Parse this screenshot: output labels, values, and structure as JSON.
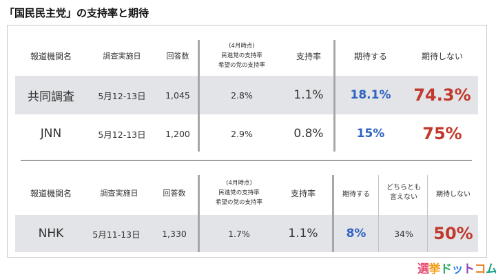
{
  "title": "「国民民主党」の支持率と期待",
  "table1": {
    "headers": {
      "agency": "報道機関名",
      "date": "調査実施日",
      "responses": "回答数",
      "note_line1": "(4月時点)",
      "note_line2": "民進党の支持率",
      "note_line3": "希望の党の支持率",
      "support": "支持率",
      "expect": "期待する",
      "no_expect": "期待しない"
    },
    "rows": [
      {
        "agency": "共同調査",
        "date": "5月12-13日",
        "responses": "1,045",
        "april": "2.8%",
        "support": "1.1%",
        "expect": "18.1%",
        "no_expect": "74.3%"
      },
      {
        "agency": "JNN",
        "date": "5月12-13日",
        "responses": "1,200",
        "april": "2.9%",
        "support": "0.8%",
        "expect": "15%",
        "no_expect": "75%"
      }
    ]
  },
  "table2": {
    "headers": {
      "agency": "報道機関名",
      "date": "調査実施日",
      "responses": "回答数",
      "note_line1": "(4月時点)",
      "note_line2": "民進党の支持率",
      "note_line3": "希望の党の支持率",
      "support": "支持率",
      "expect": "期待する",
      "neither_line1": "どちらとも",
      "neither_line2": "言えない",
      "no_expect": "期待しない"
    },
    "rows": [
      {
        "agency": "NHK",
        "date": "5月11-13日",
        "responses": "1,330",
        "april": "1.7%",
        "support": "1.1%",
        "expect": "8%",
        "neither": "34%",
        "no_expect": "50%"
      }
    ]
  },
  "logo": {
    "chars": [
      "選",
      "挙",
      "ド",
      "ッ",
      "ト",
      "コ",
      "ム"
    ],
    "colors": [
      "#e94e77",
      "#f39c12",
      "#27ae60",
      "#2f80ed",
      "#8e44ad",
      "#e67e22",
      "#16a085"
    ]
  }
}
